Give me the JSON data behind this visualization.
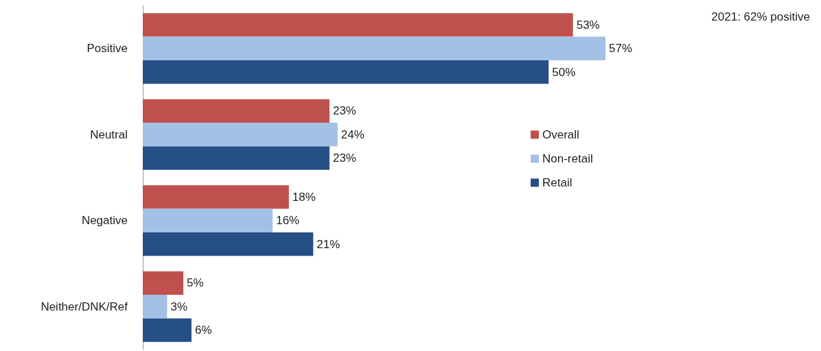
{
  "chart_data": {
    "type": "bar",
    "orientation": "horizontal",
    "categories": [
      "Positive",
      "Neutral",
      "Negative",
      "Neither/DNK/Ref"
    ],
    "series": [
      {
        "name": "Overall",
        "color": "#c0504d",
        "values": [
          53,
          23,
          18,
          5
        ],
        "value_labels": [
          "53%",
          "23%",
          "18%",
          "5%"
        ]
      },
      {
        "name": "Non-retail",
        "color": "#a3c1e6",
        "values": [
          57,
          24,
          16,
          3
        ],
        "value_labels": [
          "57%",
          "24%",
          "16%",
          "3%"
        ]
      },
      {
        "name": "Retail",
        "color": "#254f85",
        "values": [
          50,
          23,
          21,
          6
        ],
        "value_labels": [
          "50%",
          "23%",
          "21%",
          "6%"
        ]
      }
    ],
    "legend": "right",
    "annotations": [
      "2021: 62% positive"
    ]
  }
}
